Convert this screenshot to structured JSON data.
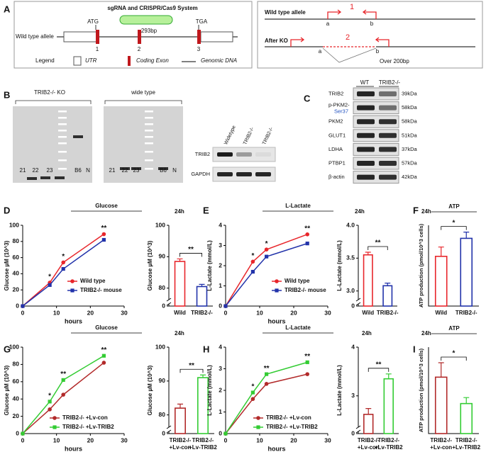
{
  "panel_labels": [
    "A",
    "B",
    "C",
    "D",
    "E",
    "F",
    "G",
    "H",
    "I"
  ],
  "diagram_a": {
    "title": "sgRNA and CRISPR/Cas9 System",
    "cut": "293bp",
    "start": "ATG",
    "stop": "TGA",
    "allele": "Wild type allele",
    "exons": [
      "1",
      "2",
      "3"
    ],
    "legend": "Legend",
    "legend_items": [
      "UTR",
      "Coding Exon",
      "Genomic DNA"
    ]
  },
  "diagram_ko": {
    "wt": "Wild type allele",
    "ko": "After KO",
    "primers": [
      "a",
      "b"
    ],
    "products": [
      "1",
      "2"
    ],
    "note": "Over 200bp"
  },
  "gel_b": {
    "group_ko": "TRIB2-/- KO",
    "group_wt": "wide type",
    "lanes": [
      "21",
      "22",
      "23",
      "B6",
      "N"
    ]
  },
  "blot_b": {
    "lanes": [
      "Widetype",
      "TRIB2-/-",
      "TRIB2-/-"
    ],
    "rows": [
      "TRIB2",
      "GAPDH"
    ]
  },
  "blot_c": {
    "lanes": [
      "WT",
      "TRIB2-/-"
    ],
    "rows": [
      {
        "label": "TRIB2",
        "size": "39kDa"
      },
      {
        "label": "p-PKM2-",
        "sublabel": "Ser37",
        "size": "58kDa"
      },
      {
        "label": "PKM2",
        "size": "58kDa"
      },
      {
        "label": "GLUT1",
        "size": "51kDa"
      },
      {
        "label": "LDHA",
        "size": "37kDa"
      },
      {
        "label": "PTBP1",
        "size": "57kDa"
      },
      {
        "label": "β-actin",
        "size": "42kDa"
      }
    ]
  },
  "chart_data": [
    {
      "type": "line",
      "title": "Glucose",
      "xlabel": "hours",
      "ylabel": "Glucose µM (10^3)",
      "x": [
        0,
        8,
        12,
        24
      ],
      "xlim": [
        0,
        30
      ],
      "xticks": [
        0,
        10,
        20,
        30
      ],
      "ylim": [
        0,
        100
      ],
      "yticks": [
        0,
        20,
        40,
        60,
        80,
        100
      ],
      "series": [
        {
          "name": "Wild type",
          "color": "#e8262b",
          "marker": "circle",
          "values": [
            0,
            29,
            54,
            89
          ]
        },
        {
          "name": "TRIB2-/- mouse",
          "color": "#2233aa",
          "marker": "square",
          "values": [
            0,
            26,
            46,
            82
          ]
        }
      ],
      "annotations": [
        null,
        "*",
        "*",
        "**"
      ]
    },
    {
      "type": "bar",
      "title": "24h",
      "ylabel": "Glucose µM (10^3)",
      "categories": [
        [
          "Wild"
        ],
        [
          "TRIB2-/-"
        ]
      ],
      "values": [
        88.5,
        80.5
      ],
      "errors": [
        0.8,
        0.7
      ],
      "colors": [
        "#e8262b",
        "#2233aa"
      ],
      "ylim": [
        77,
        100
      ],
      "yticks": [
        0,
        80,
        90,
        100
      ],
      "axis_break": true,
      "annotation": "**"
    },
    {
      "type": "line",
      "title": "L-Lactate",
      "xlabel": "hours",
      "ylabel": "L-Lactate (mmol/L)",
      "x": [
        0,
        8,
        12,
        24
      ],
      "xlim": [
        0,
        30
      ],
      "xticks": [
        0,
        10,
        20,
        30
      ],
      "ylim": [
        0,
        4
      ],
      "yticks": [
        0,
        1,
        2,
        3,
        4
      ],
      "series": [
        {
          "name": "Wild type",
          "color": "#e8262b",
          "marker": "circle",
          "values": [
            0,
            2.2,
            2.8,
            3.55
          ]
        },
        {
          "name": "TRIB2-/- mouse",
          "color": "#2233aa",
          "marker": "square",
          "values": [
            0,
            1.7,
            2.45,
            3.1
          ]
        }
      ],
      "annotations": [
        null,
        "*",
        "*",
        "**"
      ]
    },
    {
      "type": "bar",
      "title": "24h",
      "ylabel": "L-Lactate (mmol/L)",
      "categories": [
        [
          "Wild"
        ],
        [
          "TRIB2-/-"
        ]
      ],
      "values": [
        3.55,
        3.08
      ],
      "errors": [
        0.04,
        0.04
      ],
      "colors": [
        "#e8262b",
        "#2233aa"
      ],
      "ylim": [
        2.9,
        4.0
      ],
      "yticks": [
        0,
        {
          "value": 3,
          "label": "3.0"
        },
        {
          "value": 3.5,
          "label": "3.5"
        },
        {
          "value": 4,
          "label": "4.0"
        }
      ],
      "axis_break": true,
      "annotation": "**"
    },
    {
      "type": "bar",
      "title": "24h",
      "header": "ATP",
      "ylabel": "ATP production (pmol/10^3 cells)",
      "categories": [
        [
          "Wild"
        ],
        [
          "TRIB2-/-"
        ]
      ],
      "values": [
        1.6,
        2.18
      ],
      "errors": [
        0.3,
        0.2
      ],
      "colors": [
        "#e8262b",
        "#2233aa"
      ],
      "ylim": [
        0,
        2.6
      ],
      "annotation": "*"
    },
    {
      "type": "line",
      "title": "Glucose",
      "xlabel": "hours",
      "ylabel": "Glucose µM (10^3)",
      "x": [
        0,
        8,
        12,
        24
      ],
      "xlim": [
        0,
        30
      ],
      "xticks": [
        0,
        10,
        20,
        30
      ],
      "ylim": [
        0,
        100
      ],
      "yticks": [
        0,
        20,
        40,
        60,
        80,
        100
      ],
      "series": [
        {
          "name": "TRIB2-/- +Lv-con",
          "color": "#b22a2a",
          "marker": "circle",
          "values": [
            0,
            28,
            45,
            82
          ]
        },
        {
          "name": "TRIB2-/- +Lv-TRIB2",
          "color": "#33cc33",
          "marker": "square",
          "values": [
            0,
            37,
            62,
            90
          ]
        }
      ],
      "annotations": [
        null,
        "*",
        "**",
        "**"
      ]
    },
    {
      "type": "bar",
      "title": "24h",
      "ylabel": "Glucose µM (10^3)",
      "categories": [
        [
          "TRIB2-/-",
          "+Lv-con"
        ],
        [
          "TRIB2-/-",
          "+Lv-TRIB2"
        ]
      ],
      "values": [
        82,
        91
      ],
      "errors": [
        1.2,
        0.8
      ],
      "colors": [
        "#b22a2a",
        "#33cc33"
      ],
      "ylim": [
        77,
        100
      ],
      "yticks": [
        0,
        80,
        90,
        100
      ],
      "axis_break": true,
      "annotation": "**"
    },
    {
      "type": "line",
      "title": "L-Lactate",
      "xlabel": "hours",
      "ylabel": "L-Lactate (mmol/L)",
      "x": [
        0,
        8,
        12,
        24
      ],
      "xlim": [
        0,
        30
      ],
      "xticks": [
        0,
        10,
        20,
        30
      ],
      "ylim": [
        0,
        4
      ],
      "yticks": [
        0,
        1,
        2,
        3,
        4
      ],
      "series": [
        {
          "name": "TRIB2-/- +Lv-con",
          "color": "#b22a2a",
          "marker": "circle",
          "values": [
            0,
            1.6,
            2.3,
            2.75
          ]
        },
        {
          "name": "TRIB2-/- +Lv-TRIB2",
          "color": "#33cc33",
          "marker": "square",
          "values": [
            0,
            1.9,
            2.75,
            3.3
          ]
        }
      ],
      "annotations": [
        null,
        "*",
        "**",
        "**"
      ]
    },
    {
      "type": "bar",
      "title": "24h",
      "ylabel": "L-Lactate (mmol/L)",
      "categories": [
        [
          "TRIB2-/-",
          "+Lv-con"
        ],
        [
          "TRIB2-/-",
          "+Lv-TRIB2"
        ]
      ],
      "values": [
        2.62,
        3.35
      ],
      "errors": [
        0.12,
        0.1
      ],
      "colors": [
        "#b22a2a",
        "#33cc33"
      ],
      "ylim": [
        2.4,
        4
      ],
      "yticks": [
        0,
        3,
        4
      ],
      "axis_break": true,
      "annotation": "**"
    },
    {
      "type": "bar",
      "title": "24h",
      "header": "ATP",
      "ylabel": "ATP production (pmol/10^3 cells)",
      "categories": [
        [
          "TRIB2-/-",
          "+Lv-con"
        ],
        [
          "TRIB2-/-",
          "+Lv-TRIB2"
        ]
      ],
      "values": [
        2.35,
        1.25
      ],
      "errors": [
        0.6,
        0.25
      ],
      "colors": [
        "#b22a2a",
        "#33cc33"
      ],
      "ylim": [
        0,
        3.6
      ],
      "annotation": "*"
    }
  ]
}
